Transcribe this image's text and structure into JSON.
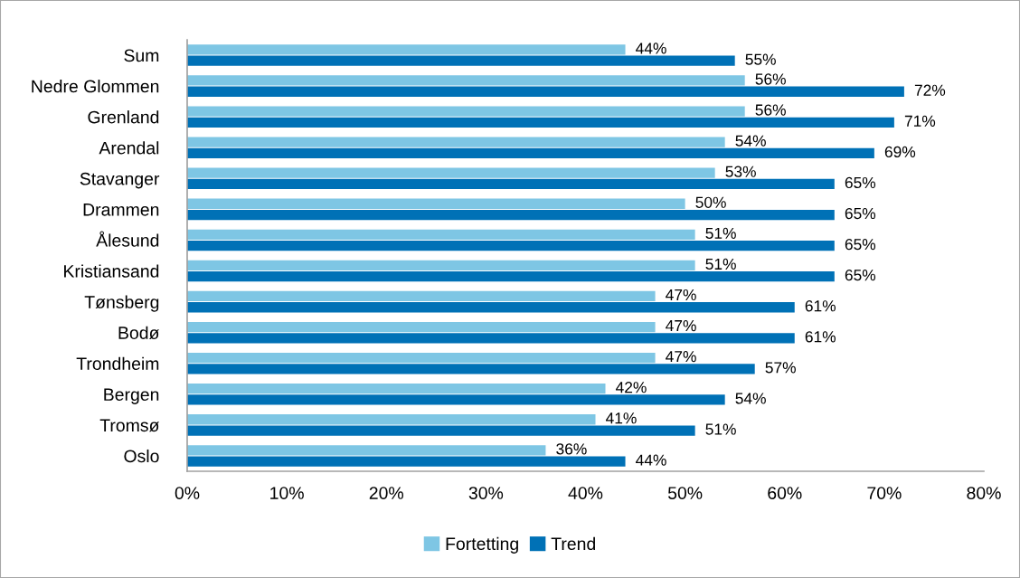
{
  "chart_data": {
    "type": "bar",
    "orientation": "horizontal",
    "categories": [
      "Sum",
      "Nedre Glommen",
      "Grenland",
      "Arendal",
      "Stavanger",
      "Drammen",
      "Ålesund",
      "Kristiansand",
      "Tønsberg",
      "Bodø",
      "Trondheim",
      "Bergen",
      "Tromsø",
      "Oslo"
    ],
    "series": [
      {
        "name": "Fortetting",
        "color": "#7ec6e4",
        "values": [
          44,
          56,
          56,
          54,
          53,
          50,
          51,
          51,
          47,
          47,
          47,
          42,
          41,
          36
        ]
      },
      {
        "name": "Trend",
        "color": "#0071b6",
        "values": [
          55,
          72,
          71,
          69,
          65,
          65,
          65,
          65,
          61,
          61,
          57,
          54,
          51,
          44
        ]
      }
    ],
    "xlim": [
      0,
      80
    ],
    "xticks": [
      {
        "value": 0,
        "label": "0%"
      },
      {
        "value": 10,
        "label": "10%"
      },
      {
        "value": 20,
        "label": "20%"
      },
      {
        "value": 30,
        "label": "30%"
      },
      {
        "value": 40,
        "label": "40%"
      },
      {
        "value": 50,
        "label": "50%"
      },
      {
        "value": 60,
        "label": "60%"
      },
      {
        "value": 70,
        "label": "70%"
      },
      {
        "value": 80,
        "label": "80%"
      }
    ],
    "value_labels": [
      [
        "44%",
        "56%",
        "56%",
        "54%",
        "53%",
        "50%",
        "51%",
        "51%",
        "47%",
        "47%",
        "47%",
        "42%",
        "41%",
        "36%"
      ],
      [
        "55%",
        "72%",
        "71%",
        "69%",
        "65%",
        "65%",
        "65%",
        "65%",
        "61%",
        "61%",
        "57%",
        "54%",
        "51%",
        "44%"
      ]
    ],
    "grid": false,
    "legend": "bottom"
  }
}
